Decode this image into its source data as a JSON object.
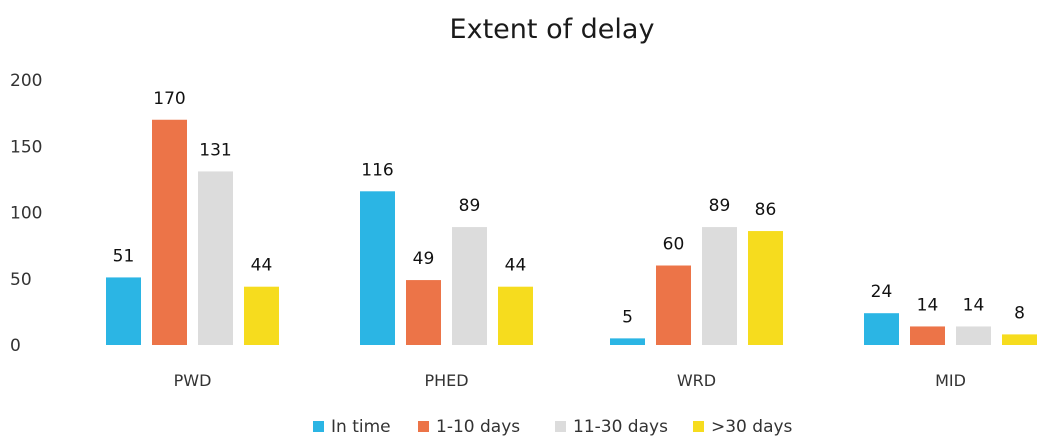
{
  "chart_data": {
    "type": "bar",
    "title": "Extent of delay",
    "xlabel": "",
    "ylabel": "",
    "ylim": [
      0,
      200
    ],
    "yticks": [
      0,
      50,
      100,
      150,
      200
    ],
    "grid": false,
    "legend_position": "bottom",
    "categories": [
      "PWD",
      "PHED",
      "WRD",
      "MID"
    ],
    "series": [
      {
        "name": "In time",
        "color": "#2bb5e4",
        "values": [
          51,
          116,
          5,
          24
        ]
      },
      {
        "name": "1-10 days",
        "color": "#ec7448",
        "values": [
          170,
          49,
          60,
          14
        ]
      },
      {
        "name": "11-30 days",
        "color": "#dcdcdc",
        "values": [
          131,
          89,
          89,
          14
        ]
      },
      {
        "name": ">30 days",
        "color": "#f6dc1e",
        "values": [
          44,
          44,
          86,
          8
        ]
      }
    ]
  }
}
